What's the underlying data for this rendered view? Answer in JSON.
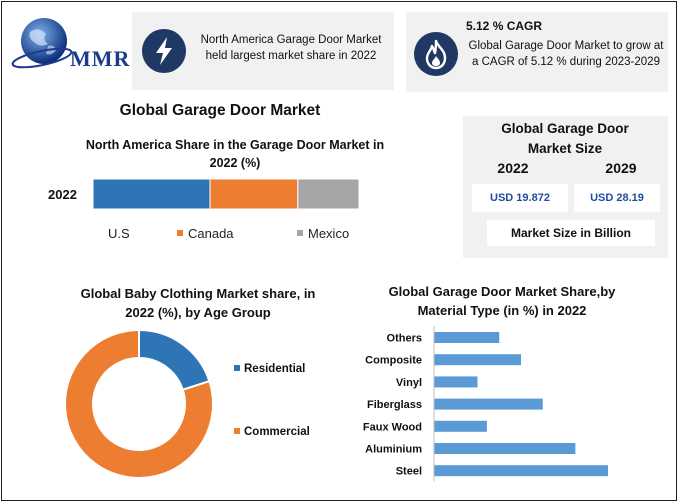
{
  "brand": {
    "name": "MMR"
  },
  "cards": {
    "region": {
      "text": "North America Garage Door Market held largest market share in 2022",
      "icon": "lightning-icon"
    },
    "cagr": {
      "title": "5.12 % CAGR",
      "text": "Global Garage Door Market to grow at a CAGR of 5.12 % during 2023-2029",
      "icon": "flame-icon"
    }
  },
  "main_title": "Global Garage Door Market",
  "market_size": {
    "title": "Global Garage Door Market Size",
    "year_a": "2022",
    "year_b": "2029",
    "value_a": "USD 19.872",
    "value_b": "USD 28.19",
    "unit_note": "Market Size in Billion"
  },
  "colors": {
    "blue": "#2e75b6",
    "orange": "#ed7d31",
    "gray": "#a5a5a5",
    "navy": "#1f3864",
    "bar": "#5b9bd5"
  },
  "chart_data": [
    {
      "type": "bar",
      "orientation": "horizontal-stacked",
      "title": "North America Share in the Garage Door Market in 2022 (%)",
      "categories": [
        "2022"
      ],
      "series": [
        {
          "name": "U.S",
          "values": [
            44
          ]
        },
        {
          "name": "Canada",
          "values": [
            33
          ]
        },
        {
          "name": "Mexico",
          "values": [
            23
          ]
        }
      ],
      "legend": "bottom"
    },
    {
      "type": "pie",
      "title": "Global Baby Clothing Market share, in 2022 (%), by Age Group",
      "labels": [
        "Residential",
        "Commercial"
      ],
      "values": [
        20,
        80
      ],
      "legend": "right"
    },
    {
      "type": "bar",
      "orientation": "horizontal",
      "title": "Global Garage Door Market Share,by Material Type (in %) in 2022",
      "categories": [
        "Others",
        "Composite",
        "Vinyl",
        "Fiberglass",
        "Faux Wood",
        "Aluminium",
        "Steel"
      ],
      "values": [
        9,
        12,
        6,
        15,
        7.3,
        19.5,
        24
      ],
      "xlim": [
        0,
        24
      ]
    }
  ]
}
